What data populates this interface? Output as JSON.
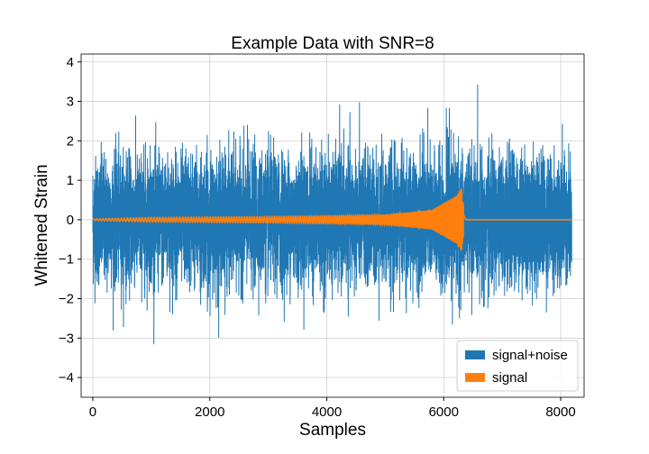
{
  "chart_data": {
    "type": "line",
    "title": "Example Data with SNR=8",
    "xlabel": "Samples",
    "ylabel": "Whitened Strain",
    "xlim": [
      -200,
      8400
    ],
    "ylim": [
      -4.5,
      4.2
    ],
    "x_ticks": [
      0,
      2000,
      4000,
      6000,
      8000
    ],
    "x_tick_labels": [
      "0",
      "2000",
      "4000",
      "6000",
      "8000"
    ],
    "y_ticks": [
      4,
      3,
      2,
      1,
      0,
      -1,
      -2,
      -3,
      -4
    ],
    "y_tick_labels": [
      "4",
      "3",
      "2",
      "1",
      "0",
      "−1",
      "−2",
      "−3",
      "−4"
    ],
    "grid": true,
    "legend_position": "lower-right",
    "series": [
      {
        "name": "signal+noise",
        "color": "#1f77b4",
        "n_samples": 8192,
        "approx_std": 0.8,
        "approx_range": [
          -4.15,
          3.65
        ]
      },
      {
        "name": "signal",
        "color": "#ff7f0e",
        "description_points": [
          {
            "x": 0,
            "amp": 0.02
          },
          {
            "x": 1000,
            "amp": 0.06
          },
          {
            "x": 3000,
            "amp": 0.08
          },
          {
            "x": 5000,
            "amp": 0.12
          },
          {
            "x": 5800,
            "amp": 0.25
          },
          {
            "x": 6200,
            "amp": 0.6
          },
          {
            "x": 6300,
            "amp": 0.8
          },
          {
            "x": 6380,
            "amp": 0.0
          },
          {
            "x": 8192,
            "amp": 0.0
          }
        ]
      }
    ]
  }
}
